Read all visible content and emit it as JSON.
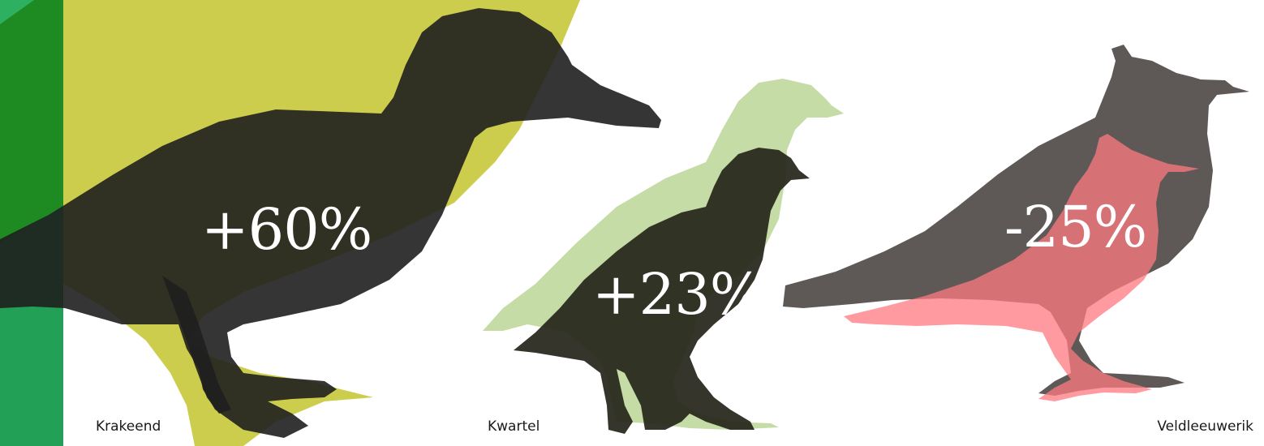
{
  "birds": [
    {
      "name": "Krakeend",
      "change": "+60%",
      "change_value": 60,
      "colors": {
        "previous": "#cdcd4d",
        "current": "#1f1f1f"
      }
    },
    {
      "name": "Kwartel",
      "change": "+23%",
      "change_value": 23,
      "colors": {
        "previous": "#c5dca6",
        "current": "#242419"
      }
    },
    {
      "name": "Veldleeuwerik",
      "change": "-25%",
      "change_value": -25,
      "colors": {
        "previous": "#5e5956",
        "current": "#ff7a80"
      }
    }
  ],
  "colors": {
    "side_band_dark": "#1e8a22",
    "side_band_light": "#22a055"
  }
}
